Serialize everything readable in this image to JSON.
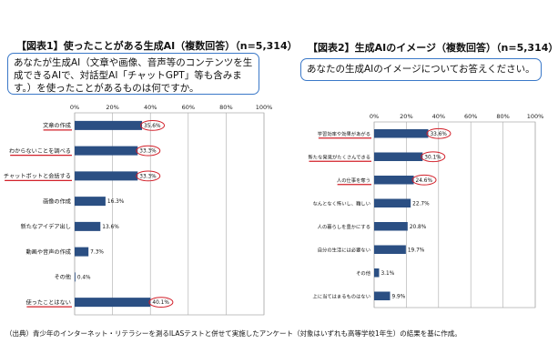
{
  "figure1": {
    "title": "【図表1】使ったことがある生成AI（複数回答）（n=5,314）",
    "question": "あなたが生成AI（文章や画像、音声等のコンテンツを生成できるAIで、対話型AI「チャットGPT」等も含みます。）を使ったことがあるものは何ですか。",
    "chart_data": {
      "type": "bar",
      "orientation": "horizontal",
      "categories": [
        "文章の作成",
        "わからないことを調べる",
        "チャットボットと会話する",
        "画像の作成",
        "新たなアイデア出し",
        "動画や音声の作成",
        "その他",
        "使ったことはない"
      ],
      "values": [
        35.6,
        33.3,
        33.3,
        16.3,
        13.6,
        7.3,
        0.4,
        40.1
      ],
      "data_labels": [
        "35.6%",
        "33.3%",
        "33.3%",
        "16.3%",
        "13.6%",
        "7.3%",
        "0.4%",
        "40.1%"
      ],
      "xlim": [
        0,
        100
      ],
      "ticks": [
        "0%",
        "20%",
        "40%",
        "60%",
        "80%",
        "100%"
      ],
      "highlighted": [
        0,
        1,
        2,
        7
      ],
      "bar_color": "#2b4f83",
      "highlight_color": "#d2202a"
    }
  },
  "figure2": {
    "title": "【図表2】生成AIのイメージ（複数回答）（n=5,314）",
    "question": "あなたの生成AIのイメージについてお答えください。",
    "chart_data": {
      "type": "bar",
      "orientation": "horizontal",
      "categories": [
        "学習効率や効果があがる",
        "新たな発見がたくさんできる",
        "人の仕事を奪う",
        "なんとなく怖いし、難しい",
        "人の暮らしを豊かにする",
        "自分の生活には必要ない",
        "その他",
        "上に当てはまるものはない"
      ],
      "values": [
        33.6,
        30.1,
        24.6,
        22.7,
        20.8,
        19.7,
        3.1,
        9.9
      ],
      "data_labels": [
        "33.6%",
        "30.1%",
        "24.6%",
        "22.7%",
        "20.8%",
        "19.7%",
        "3.1%",
        "9.9%"
      ],
      "xlim": [
        0,
        100
      ],
      "ticks": [
        "0%",
        "20%",
        "40%",
        "60%",
        "80%",
        "100%"
      ],
      "highlighted": [
        0,
        1,
        2
      ],
      "bar_color": "#2b4f83",
      "highlight_color": "#d2202a"
    }
  },
  "source": "（出典）青少年のインターネット・リテラシーを測るILASテストと併せて実施したアンケート（対象はいずれも高等学校1年生）の結果を基に作成。"
}
